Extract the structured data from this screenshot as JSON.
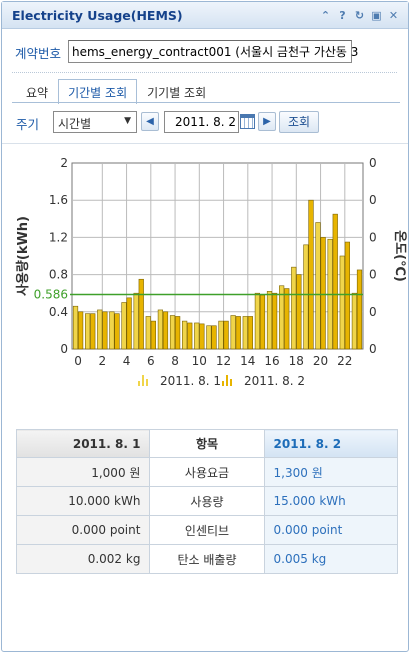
{
  "window": {
    "title": "Electricity Usage(HEMS)",
    "icons": [
      "collapse-icon",
      "help-icon",
      "refresh-icon",
      "maximize-icon",
      "close-icon"
    ]
  },
  "contract": {
    "label": "계약번호",
    "value": "hems_energy_contract001 (서울시 금천구 가산동 3"
  },
  "tabs": [
    {
      "label": "요약",
      "active": false
    },
    {
      "label": "기간별 조회",
      "active": true
    },
    {
      "label": "기기별 조회",
      "active": false
    }
  ],
  "filter": {
    "period_label": "주기",
    "period_value": "시간별",
    "date_value": "2011. 8. 2",
    "search_label": "조회"
  },
  "chart_data": {
    "type": "bar",
    "categories": [
      0,
      1,
      2,
      3,
      4,
      5,
      6,
      7,
      8,
      9,
      10,
      11,
      12,
      13,
      14,
      15,
      16,
      17,
      18,
      19,
      20,
      21,
      22,
      23
    ],
    "x_tick_labels": [
      "0",
      "2",
      "4",
      "6",
      "8",
      "10",
      "12",
      "14",
      "16",
      "18",
      "20",
      "22"
    ],
    "ylabel": "사용량(kWh)",
    "y2label": "온도(℃)",
    "ylim": [
      0,
      2
    ],
    "y_tick_labels": [
      "0",
      "0.4",
      "0.8",
      "1.2",
      "1.6",
      "2"
    ],
    "y2_tick_labels": [
      "0",
      "0",
      "0",
      "0",
      "0",
      "0"
    ],
    "grid": true,
    "reference_line": {
      "value": 0.586,
      "label": "0.586",
      "color": "#3fa02a"
    },
    "series": [
      {
        "name": "2011. 8. 1",
        "color": "#f0d54a",
        "values": [
          0.46,
          0.38,
          0.42,
          0.4,
          0.5,
          0.6,
          0.35,
          0.42,
          0.36,
          0.3,
          0.28,
          0.25,
          0.3,
          0.36,
          0.35,
          0.6,
          0.62,
          0.68,
          0.88,
          1.12,
          1.36,
          1.18,
          1.0,
          0.6
        ]
      },
      {
        "name": "2011. 8. 2",
        "color": "#e7b400",
        "values": [
          0.4,
          0.38,
          0.4,
          0.38,
          0.55,
          0.75,
          0.3,
          0.4,
          0.35,
          0.28,
          0.27,
          0.25,
          0.3,
          0.35,
          0.35,
          0.58,
          0.6,
          0.65,
          0.8,
          1.6,
          1.2,
          1.45,
          1.15,
          0.85
        ]
      }
    ]
  },
  "table": {
    "header": {
      "left": "2011. 8. 1",
      "mid": "항목",
      "right": "2011. 8. 2"
    },
    "rows": [
      {
        "left": "1,000 원",
        "mid": "사용요금",
        "right": "1,300 원"
      },
      {
        "left": "10.000 kWh",
        "mid": "사용량",
        "right": "15.000 kWh"
      },
      {
        "left": "0.000 point",
        "mid": "인센티브",
        "right": "0.000 point"
      },
      {
        "left": "0.002 kg",
        "mid": "탄소 배출량",
        "right": "0.005 kg"
      }
    ]
  }
}
